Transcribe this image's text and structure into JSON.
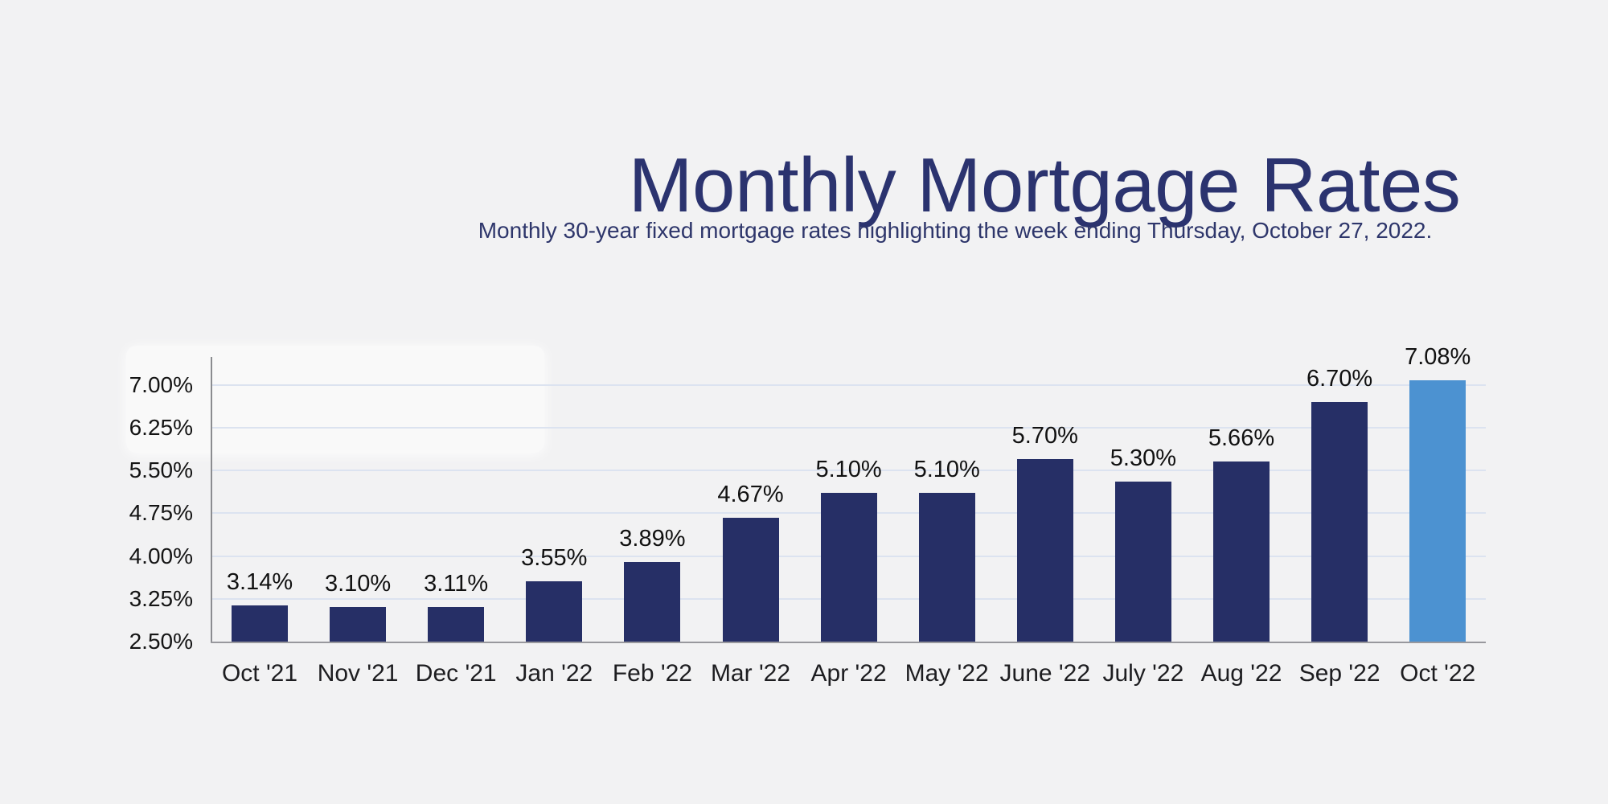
{
  "page": {
    "background_color": "#f2f2f3"
  },
  "header": {
    "title": "Monthly Mortgage Rates",
    "subtitle": "Monthly 30-year fixed mortgage rates highlighting the week ending Thursday, October 27, 2022.",
    "title_color": "#2b336f"
  },
  "chart_data": {
    "type": "bar",
    "title": "Monthly Mortgage Rates",
    "subtitle": "Monthly 30-year fixed mortgage rates highlighting the week ending Thursday, October 27, 2022.",
    "categories": [
      "Oct '21",
      "Nov '21",
      "Dec '21",
      "Jan '22",
      "Feb '22",
      "Mar '22",
      "Apr '22",
      "May '22",
      "June '22",
      "July '22",
      "Aug '22",
      "Sep '22",
      "Oct '22"
    ],
    "values": [
      3.14,
      3.1,
      3.11,
      3.55,
      3.89,
      4.67,
      5.1,
      5.1,
      5.7,
      5.3,
      5.66,
      6.7,
      7.08
    ],
    "value_labels": [
      "3.14%",
      "3.10%",
      "3.11%",
      "3.55%",
      "3.89%",
      "4.67%",
      "5.10%",
      "5.10%",
      "5.70%",
      "5.30%",
      "5.66%",
      "6.70%",
      "7.08%"
    ],
    "y_tick_labels": [
      "7.00%",
      "6.25%",
      "5.50%",
      "4.75%",
      "4.00%",
      "3.25%",
      "2.50%"
    ],
    "ylim": [
      2.5,
      7.25
    ],
    "xlabel": "",
    "ylabel": "",
    "grid": true,
    "legend": false,
    "bar_color": "#262f66",
    "highlight_color": "#4c92d1",
    "highlight_index": 12,
    "gridline_color": "#dce3f0",
    "axis_color": "#8b8c90"
  }
}
